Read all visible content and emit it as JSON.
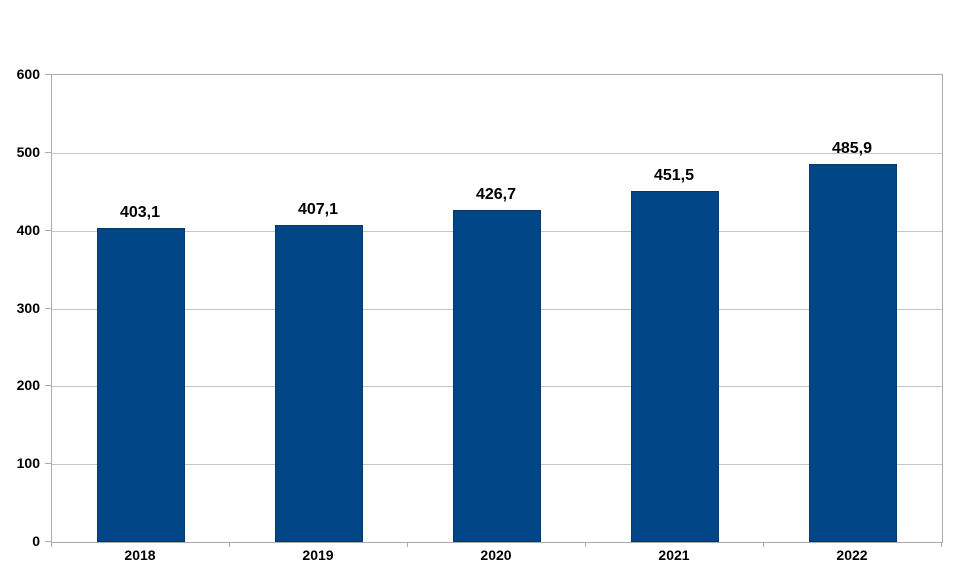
{
  "chart_data": {
    "type": "bar",
    "title": "",
    "xlabel": "",
    "ylabel": "",
    "categories": [
      "2018",
      "2019",
      "2020",
      "2021",
      "2022"
    ],
    "values": [
      403.1,
      407.1,
      426.7,
      451.5,
      485.9
    ],
    "value_labels": [
      "403,1",
      "407,1",
      "426,7",
      "451,5",
      "485,9"
    ],
    "series_name": "",
    "ylim": [
      0,
      600
    ],
    "ytick_interval": 100,
    "ytick_labels": [
      "0",
      "100",
      "200",
      "300",
      "400",
      "500",
      "600"
    ],
    "grid": "horizontal",
    "legend_position": "none",
    "decimal_separator": ",",
    "colors": {
      "bar_fill": "#004586",
      "bar_border": "#00396e",
      "gridline": "#c6c6c6",
      "axis_border": "#ababab",
      "label_text": "#000000",
      "background": "#ffffff"
    }
  }
}
